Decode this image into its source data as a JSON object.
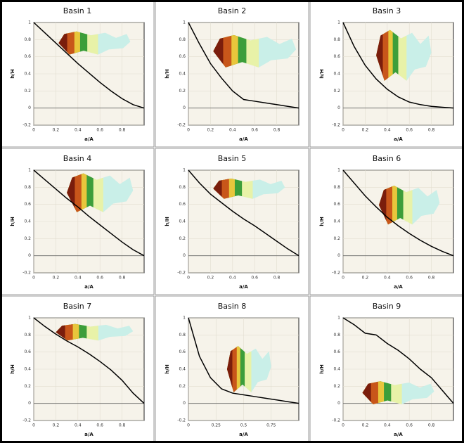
{
  "chart_data": [
    {
      "type": "line",
      "title": "Basin 1",
      "x_label": "a/A",
      "y_label": "h/H",
      "x": [
        0,
        0.1,
        0.2,
        0.3,
        0.4,
        0.5,
        0.6,
        0.7,
        0.8,
        0.9,
        1
      ],
      "values": [
        1,
        0.88,
        0.76,
        0.64,
        0.52,
        0.41,
        0.3,
        0.2,
        0.11,
        0.04,
        0
      ],
      "color": "#000000",
      "xlim": [
        0,
        1
      ],
      "ylim": [
        -0.2,
        1
      ],
      "xticks": [
        0,
        0.2,
        0.4,
        0.6,
        0.8
      ],
      "yticks": [
        -0.2,
        0,
        0.2,
        0.4,
        0.6,
        0.8,
        1
      ],
      "grid": true
    },
    {
      "type": "line",
      "title": "Basin 2",
      "x_label": "a/A",
      "y_label": "h/H",
      "x": [
        0,
        0.1,
        0.2,
        0.3,
        0.4,
        0.5,
        0.6,
        0.7,
        0.8,
        0.9,
        1
      ],
      "values": [
        1,
        0.75,
        0.52,
        0.35,
        0.2,
        0.1,
        0.08,
        0.06,
        0.04,
        0.02,
        0
      ],
      "color": "#000000",
      "xlim": [
        0,
        1
      ],
      "ylim": [
        -0.2,
        1
      ],
      "xticks": [
        0,
        0.2,
        0.4,
        0.6,
        0.8
      ],
      "yticks": [
        -0.2,
        0,
        0.2,
        0.4,
        0.6,
        0.8,
        1
      ],
      "grid": true
    },
    {
      "type": "line",
      "title": "Basin 3",
      "x_label": "a/A",
      "y_label": "h/H",
      "x": [
        0,
        0.1,
        0.2,
        0.3,
        0.4,
        0.5,
        0.6,
        0.7,
        0.8,
        0.9,
        1
      ],
      "values": [
        1,
        0.72,
        0.5,
        0.34,
        0.22,
        0.13,
        0.07,
        0.04,
        0.02,
        0.01,
        0
      ],
      "color": "#000000",
      "xlim": [
        0,
        1
      ],
      "ylim": [
        -0.2,
        1
      ],
      "xticks": [
        0,
        0.2,
        0.4,
        0.6,
        0.8
      ],
      "yticks": [
        -0.2,
        0,
        0.2,
        0.4,
        0.6,
        0.8,
        1
      ],
      "grid": true
    },
    {
      "type": "line",
      "title": "Basin 4",
      "x_label": "a/A",
      "y_label": "h/H",
      "x": [
        0,
        0.1,
        0.2,
        0.3,
        0.4,
        0.5,
        0.6,
        0.7,
        0.8,
        0.9,
        1
      ],
      "values": [
        1,
        0.89,
        0.78,
        0.67,
        0.57,
        0.46,
        0.36,
        0.26,
        0.16,
        0.07,
        0
      ],
      "color": "#000000",
      "xlim": [
        0,
        1
      ],
      "ylim": [
        -0.2,
        1
      ],
      "xticks": [
        0,
        0.2,
        0.4,
        0.6,
        0.8
      ],
      "yticks": [
        -0.2,
        0,
        0.2,
        0.4,
        0.6,
        0.8,
        1
      ],
      "grid": true
    },
    {
      "type": "line",
      "title": "Basin 5",
      "x_label": "a/A",
      "y_label": "h/H",
      "x": [
        0,
        0.1,
        0.2,
        0.3,
        0.4,
        0.5,
        0.6,
        0.7,
        0.8,
        0.9,
        1
      ],
      "values": [
        1,
        0.85,
        0.72,
        0.62,
        0.52,
        0.43,
        0.35,
        0.26,
        0.17,
        0.08,
        0
      ],
      "color": "#000000",
      "xlim": [
        0,
        1
      ],
      "ylim": [
        -0.2,
        1
      ],
      "xticks": [
        0,
        0.2,
        0.4,
        0.6,
        0.8
      ],
      "yticks": [
        -0.2,
        0,
        0.2,
        0.4,
        0.6,
        0.8,
        1
      ],
      "grid": true
    },
    {
      "type": "line",
      "title": "Basin 6",
      "x_label": "a/A",
      "y_label": "h/H",
      "x": [
        0,
        0.1,
        0.2,
        0.3,
        0.4,
        0.5,
        0.6,
        0.7,
        0.8,
        0.9,
        1
      ],
      "values": [
        1,
        0.85,
        0.7,
        0.57,
        0.45,
        0.35,
        0.26,
        0.18,
        0.11,
        0.05,
        0
      ],
      "color": "#000000",
      "xlim": [
        0,
        1
      ],
      "ylim": [
        -0.2,
        1
      ],
      "xticks": [
        0,
        0.2,
        0.4,
        0.6,
        0.8
      ],
      "yticks": [
        -0.2,
        0,
        0.2,
        0.4,
        0.6,
        0.8,
        1
      ],
      "grid": true
    },
    {
      "type": "line",
      "title": "Basin 7",
      "x_label": "a/A",
      "y_label": "h/H",
      "x": [
        0,
        0.1,
        0.2,
        0.3,
        0.4,
        0.5,
        0.6,
        0.7,
        0.8,
        0.9,
        1
      ],
      "values": [
        1,
        0.9,
        0.81,
        0.73,
        0.66,
        0.58,
        0.49,
        0.39,
        0.27,
        0.12,
        0
      ],
      "color": "#000000",
      "xlim": [
        0,
        1
      ],
      "ylim": [
        -0.2,
        1
      ],
      "xticks": [
        0,
        0.2,
        0.4,
        0.6,
        0.8
      ],
      "yticks": [
        -0.2,
        0,
        0.2,
        0.4,
        0.6,
        0.8,
        1
      ],
      "grid": true
    },
    {
      "type": "line",
      "title": "Basin 8",
      "x_label": "a/A",
      "y_label": "h/H",
      "x": [
        0,
        0.1,
        0.2,
        0.3,
        0.4,
        0.5,
        0.6,
        0.7,
        0.8,
        0.9,
        1
      ],
      "values": [
        1,
        0.55,
        0.3,
        0.17,
        0.12,
        0.1,
        0.08,
        0.06,
        0.04,
        0.02,
        0
      ],
      "color": "#000000",
      "xlim": [
        0,
        1
      ],
      "ylim": [
        -0.2,
        1
      ],
      "xticks": [
        0,
        0.25,
        0.5,
        0.75
      ],
      "yticks": [
        -0.2,
        0,
        0.2,
        0.4,
        0.6,
        0.8,
        1
      ],
      "grid": true
    },
    {
      "type": "line",
      "title": "Basin 9",
      "x_label": "a/A",
      "y_label": "h/H",
      "x": [
        0,
        0.1,
        0.2,
        0.3,
        0.4,
        0.5,
        0.6,
        0.7,
        0.8,
        0.9,
        1
      ],
      "values": [
        1,
        0.92,
        0.82,
        0.8,
        0.7,
        0.62,
        0.52,
        0.4,
        0.3,
        0.15,
        0
      ],
      "color": "#000000",
      "xlim": [
        0,
        1
      ],
      "ylim": [
        -0.2,
        1
      ],
      "xticks": [
        0,
        0.2,
        0.4,
        0.6,
        0.8
      ],
      "yticks": [
        -0.2,
        0,
        0.2,
        0.4,
        0.6,
        0.8,
        1
      ],
      "grid": true
    }
  ]
}
